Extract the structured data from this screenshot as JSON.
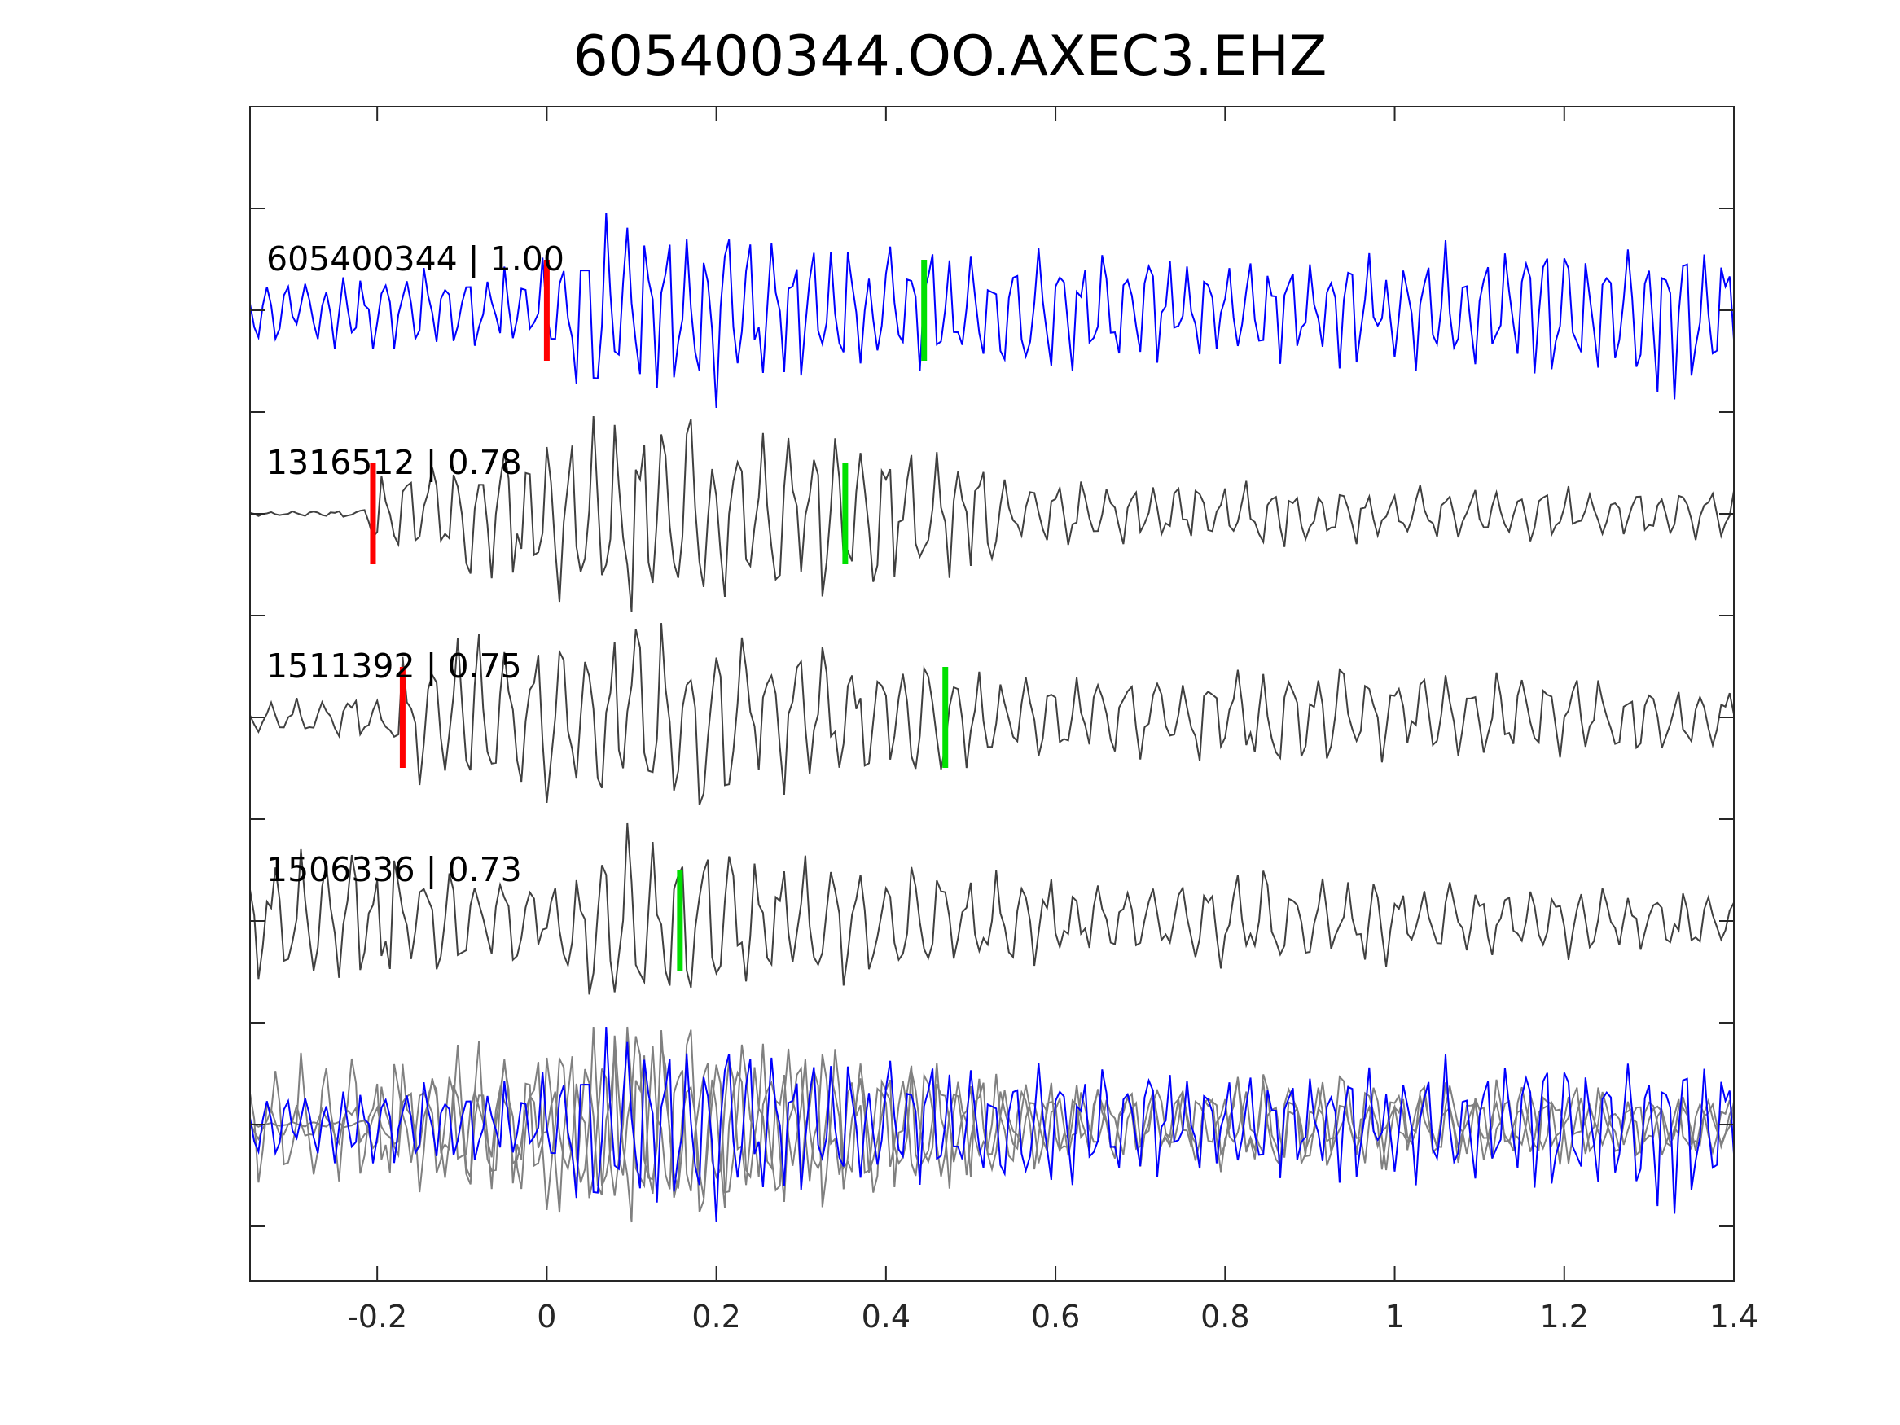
{
  "chart_data": {
    "type": "line",
    "title": "605400344.OO.AXEC3.EHZ",
    "xlabel": "",
    "ylabel": "",
    "xlim": [
      -0.35,
      1.4
    ],
    "x_ticks": [
      "-0.2",
      "0",
      "0.2",
      "0.4",
      "0.6",
      "0.8",
      "1",
      "1.2",
      "1.4"
    ],
    "x_tick_values": [
      -0.2,
      0,
      0.2,
      0.4,
      0.6,
      0.8,
      1.0,
      1.2,
      1.4
    ],
    "grid": false,
    "series": [
      {
        "name": "605400344 | 1.00",
        "label": "605400344 | 1.00",
        "color": "#0000ff",
        "red_pick": 0.0,
        "green_pick": 0.445,
        "seed": 11,
        "amplitude_envelope": [
          [
            -0.35,
            0.35
          ],
          [
            -0.02,
            0.45
          ],
          [
            0.05,
            0.95
          ],
          [
            0.2,
            0.9
          ],
          [
            0.4,
            0.65
          ],
          [
            0.6,
            0.6
          ],
          [
            0.9,
            0.55
          ],
          [
            1.2,
            0.7
          ],
          [
            1.3,
            0.9
          ],
          [
            1.4,
            0.6
          ]
        ],
        "period": 0.023
      },
      {
        "name": "1316512 | 0.78",
        "label": "1316512 | 0.78",
        "color": "#404040",
        "red_pick": -0.205,
        "green_pick": 0.352,
        "seed": 23,
        "amplitude_envelope": [
          [
            -0.35,
            0.02
          ],
          [
            -0.22,
            0.04
          ],
          [
            -0.2,
            0.4
          ],
          [
            -0.1,
            0.6
          ],
          [
            0.0,
            0.9
          ],
          [
            0.1,
            1.0
          ],
          [
            0.3,
            0.9
          ],
          [
            0.45,
            0.8
          ],
          [
            0.5,
            0.7
          ],
          [
            0.55,
            0.35
          ],
          [
            0.8,
            0.3
          ],
          [
            1.4,
            0.25
          ]
        ],
        "period": 0.028
      },
      {
        "name": "1511392 | 0.75",
        "label": "1511392 | 0.75",
        "color": "#404040",
        "red_pick": -0.17,
        "green_pick": 0.47,
        "seed": 37,
        "amplitude_envelope": [
          [
            -0.35,
            0.15
          ],
          [
            -0.2,
            0.25
          ],
          [
            -0.17,
            0.6
          ],
          [
            -0.05,
            0.85
          ],
          [
            0.15,
            1.0
          ],
          [
            0.3,
            0.7
          ],
          [
            0.5,
            0.55
          ],
          [
            0.6,
            0.4
          ],
          [
            0.9,
            0.5
          ],
          [
            1.4,
            0.35
          ]
        ],
        "period": 0.03
      },
      {
        "name": "1506336 | 0.73",
        "label": "1506336 | 0.73",
        "color": "#404040",
        "red_pick": null,
        "green_pick": 0.157,
        "seed": 51,
        "amplitude_envelope": [
          [
            -0.35,
            0.6
          ],
          [
            -0.25,
            0.75
          ],
          [
            -0.1,
            0.5
          ],
          [
            0.0,
            0.4
          ],
          [
            0.05,
            0.85
          ],
          [
            0.1,
            1.0
          ],
          [
            0.3,
            0.7
          ],
          [
            0.5,
            0.5
          ],
          [
            0.7,
            0.35
          ],
          [
            0.8,
            0.5
          ],
          [
            1.0,
            0.4
          ],
          [
            1.4,
            0.3
          ]
        ],
        "period": 0.03
      }
    ],
    "stack_overlay": {
      "colors": [
        "#0000ff",
        "#808080",
        "#808080",
        "#808080"
      ]
    },
    "pick_colors": {
      "red": "#ff0000",
      "green": "#00e000"
    }
  }
}
